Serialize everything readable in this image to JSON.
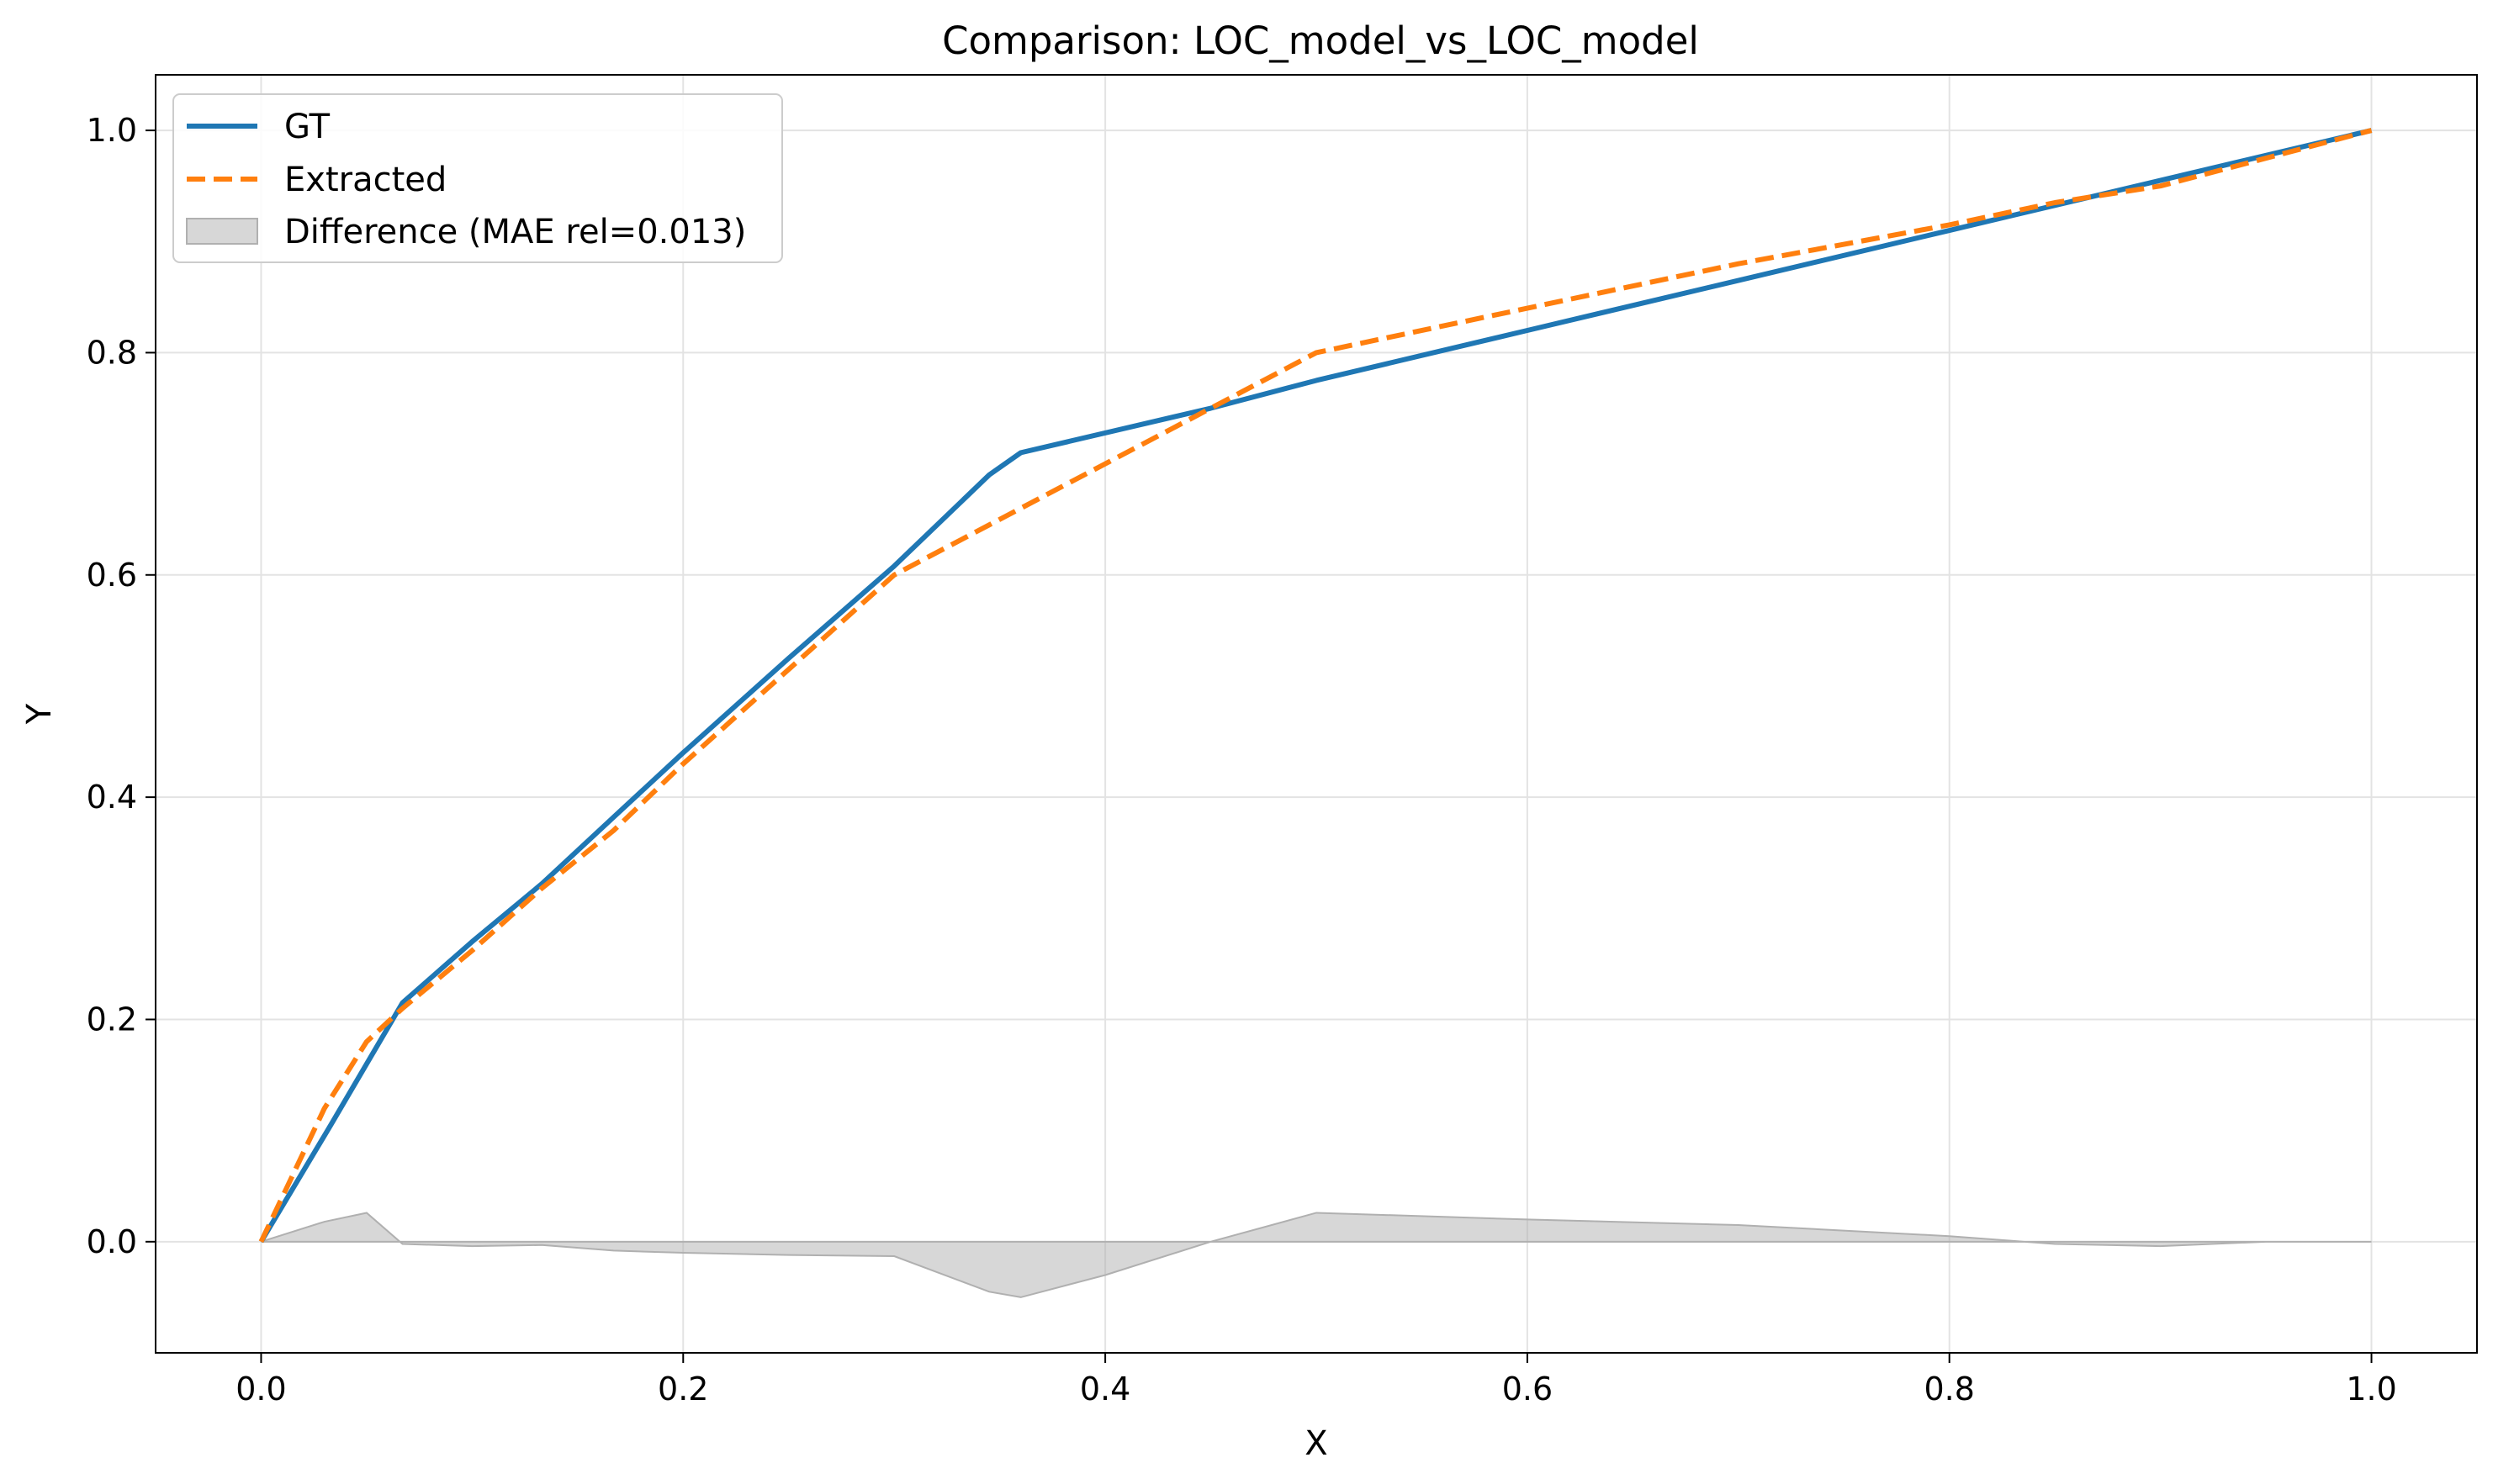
{
  "chart_data": {
    "type": "line",
    "title": "Comparison: LOC_model_vs_LOC_model",
    "xlabel": "X",
    "ylabel": "Y",
    "xlim": [
      -0.05,
      1.05
    ],
    "ylim": [
      -0.1,
      1.05
    ],
    "xticks": [
      "0.0",
      "0.2",
      "0.4",
      "0.6",
      "0.8",
      "1.0"
    ],
    "yticks": [
      "0.0",
      "0.2",
      "0.4",
      "0.6",
      "0.8",
      "1.0"
    ],
    "grid": true,
    "legend_position": "top-left",
    "series": [
      {
        "name": "GT",
        "color": "#1f77b4",
        "style": "solid",
        "x": [
          0.0,
          0.033,
          0.067,
          0.1,
          0.133,
          0.167,
          0.2,
          0.25,
          0.3,
          0.345,
          0.36,
          0.45,
          0.5,
          0.6,
          0.7,
          0.8,
          0.9,
          1.0
        ],
        "y": [
          0.0,
          0.105,
          0.215,
          0.27,
          0.322,
          0.382,
          0.44,
          0.525,
          0.608,
          0.69,
          0.71,
          0.75,
          0.775,
          0.82,
          0.865,
          0.91,
          0.955,
          1.0
        ]
      },
      {
        "name": "Extracted",
        "color": "#ff7f0e",
        "style": "dashed",
        "x": [
          0.0,
          0.03,
          0.05,
          0.067,
          0.1,
          0.133,
          0.167,
          0.2,
          0.25,
          0.3,
          0.345,
          0.36,
          0.4,
          0.45,
          0.5,
          0.6,
          0.7,
          0.8,
          0.85,
          0.9,
          1.0
        ],
        "y": [
          0.0,
          0.12,
          0.18,
          0.21,
          0.262,
          0.318,
          0.37,
          0.43,
          0.515,
          0.6,
          0.645,
          0.66,
          0.7,
          0.75,
          0.8,
          0.84,
          0.88,
          0.915,
          0.935,
          0.95,
          1.0
        ]
      },
      {
        "name": "Difference (MAE rel=0.013)",
        "color": "#b0b0b0",
        "style": "fill",
        "x": [
          0.0,
          0.03,
          0.05,
          0.067,
          0.1,
          0.133,
          0.167,
          0.2,
          0.25,
          0.3,
          0.345,
          0.36,
          0.4,
          0.45,
          0.5,
          0.6,
          0.7,
          0.8,
          0.85,
          0.9,
          0.95,
          1.0
        ],
        "y": [
          0.0,
          0.018,
          0.026,
          -0.002,
          -0.004,
          -0.003,
          -0.008,
          -0.01,
          -0.012,
          -0.013,
          -0.045,
          -0.05,
          -0.03,
          0.0,
          0.026,
          0.02,
          0.015,
          0.005,
          -0.002,
          -0.004,
          0.0,
          0.0
        ]
      }
    ]
  }
}
